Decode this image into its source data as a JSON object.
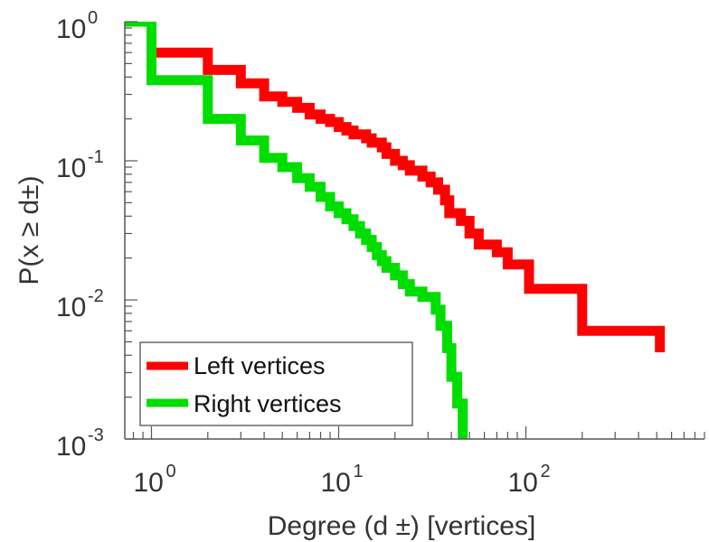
{
  "chart_data": {
    "type": "line",
    "xlabel": "Degree (d ±) [vertices]",
    "ylabel": "P(x ≥ d±)",
    "x_scale": "log",
    "y_scale": "log",
    "xlim": [
      0.72,
      900
    ],
    "ylim": [
      0.001,
      1
    ],
    "x_ticks": [
      {
        "base": "10",
        "exp": "0",
        "value": 1
      },
      {
        "base": "10",
        "exp": "1",
        "value": 10
      },
      {
        "base": "10",
        "exp": "2",
        "value": 100
      }
    ],
    "y_ticks": [
      {
        "base": "10",
        "exp": "0",
        "value": 1
      },
      {
        "base": "10",
        "exp": "-1",
        "value": 0.1
      },
      {
        "base": "10",
        "exp": "-2",
        "value": 0.01
      },
      {
        "base": "10",
        "exp": "-3",
        "value": 0.001
      }
    ],
    "grid": false,
    "legend_position": "bottom-left",
    "series": [
      {
        "name": "Left vertices",
        "color": "#ff0000",
        "step": true,
        "points": [
          [
            0.72,
            1.0
          ],
          [
            1,
            1.0
          ],
          [
            1,
            0.6
          ],
          [
            2,
            0.6
          ],
          [
            2,
            0.45
          ],
          [
            3,
            0.45
          ],
          [
            3,
            0.36
          ],
          [
            4,
            0.36
          ],
          [
            4,
            0.29
          ],
          [
            5,
            0.29
          ],
          [
            5,
            0.265
          ],
          [
            6,
            0.265
          ],
          [
            6,
            0.24
          ],
          [
            7,
            0.24
          ],
          [
            7,
            0.215
          ],
          [
            8,
            0.215
          ],
          [
            8,
            0.2
          ],
          [
            9,
            0.2
          ],
          [
            9,
            0.19
          ],
          [
            10,
            0.19
          ],
          [
            10,
            0.175
          ],
          [
            11,
            0.175
          ],
          [
            11,
            0.165
          ],
          [
            12,
            0.165
          ],
          [
            12,
            0.155
          ],
          [
            14,
            0.155
          ],
          [
            14,
            0.145
          ],
          [
            15,
            0.145
          ],
          [
            15,
            0.135
          ],
          [
            17,
            0.135
          ],
          [
            17,
            0.125
          ],
          [
            18,
            0.125
          ],
          [
            18,
            0.112
          ],
          [
            20,
            0.112
          ],
          [
            20,
            0.1
          ],
          [
            22,
            0.1
          ],
          [
            22,
            0.093
          ],
          [
            24,
            0.093
          ],
          [
            24,
            0.085
          ],
          [
            28,
            0.085
          ],
          [
            28,
            0.077
          ],
          [
            31,
            0.077
          ],
          [
            31,
            0.07
          ],
          [
            34,
            0.07
          ],
          [
            34,
            0.062
          ],
          [
            37,
            0.062
          ],
          [
            37,
            0.052
          ],
          [
            39,
            0.052
          ],
          [
            39,
            0.042
          ],
          [
            45,
            0.042
          ],
          [
            45,
            0.037
          ],
          [
            50,
            0.037
          ],
          [
            50,
            0.03
          ],
          [
            56,
            0.03
          ],
          [
            56,
            0.025
          ],
          [
            70,
            0.025
          ],
          [
            70,
            0.022
          ],
          [
            80,
            0.022
          ],
          [
            80,
            0.018
          ],
          [
            104,
            0.018
          ],
          [
            104,
            0.012
          ],
          [
            200,
            0.012
          ],
          [
            200,
            0.006
          ],
          [
            520,
            0.006
          ],
          [
            520,
            0.0042
          ]
        ]
      },
      {
        "name": "Right vertices",
        "color": "#00dd00",
        "step": true,
        "points": [
          [
            0.72,
            1.0
          ],
          [
            1,
            1.0
          ],
          [
            1,
            0.38
          ],
          [
            2,
            0.38
          ],
          [
            2,
            0.2
          ],
          [
            3,
            0.2
          ],
          [
            3,
            0.14
          ],
          [
            4,
            0.14
          ],
          [
            4,
            0.105
          ],
          [
            5,
            0.105
          ],
          [
            5,
            0.09
          ],
          [
            6,
            0.09
          ],
          [
            6,
            0.075
          ],
          [
            7,
            0.075
          ],
          [
            7,
            0.065
          ],
          [
            8,
            0.065
          ],
          [
            8,
            0.055
          ],
          [
            9,
            0.055
          ],
          [
            9,
            0.047
          ],
          [
            10,
            0.047
          ],
          [
            10,
            0.042
          ],
          [
            11,
            0.042
          ],
          [
            11,
            0.038
          ],
          [
            12,
            0.038
          ],
          [
            12,
            0.034
          ],
          [
            13,
            0.034
          ],
          [
            13,
            0.03
          ],
          [
            14,
            0.03
          ],
          [
            14,
            0.027
          ],
          [
            15,
            0.027
          ],
          [
            15,
            0.024
          ],
          [
            16,
            0.024
          ],
          [
            16,
            0.021
          ],
          [
            17,
            0.021
          ],
          [
            17,
            0.019
          ],
          [
            18,
            0.019
          ],
          [
            18,
            0.017
          ],
          [
            20,
            0.017
          ],
          [
            20,
            0.015
          ],
          [
            22,
            0.015
          ],
          [
            22,
            0.013
          ],
          [
            24,
            0.013
          ],
          [
            24,
            0.0115
          ],
          [
            28,
            0.0115
          ],
          [
            28,
            0.0105
          ],
          [
            33,
            0.0105
          ],
          [
            33,
            0.0085
          ],
          [
            35,
            0.0085
          ],
          [
            35,
            0.0065
          ],
          [
            38,
            0.0065
          ],
          [
            38,
            0.0045
          ],
          [
            40,
            0.0045
          ],
          [
            40,
            0.0028
          ],
          [
            43,
            0.0028
          ],
          [
            43,
            0.0018
          ],
          [
            46,
            0.0018
          ],
          [
            46,
            0.00098
          ]
        ]
      }
    ]
  }
}
